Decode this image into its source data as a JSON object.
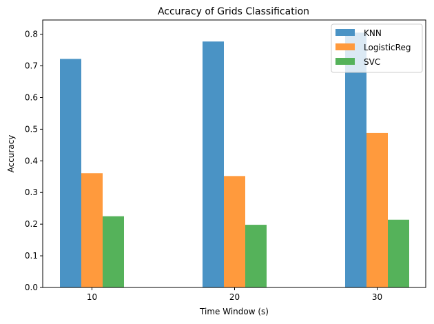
{
  "chart_data": {
    "type": "bar",
    "title": "Accuracy of Grids Classification",
    "xlabel": "Time Window (s)",
    "ylabel": "Accuracy",
    "categories": [
      "10",
      "20",
      "30"
    ],
    "ylim": [
      0,
      0.845
    ],
    "yticks": [
      "0.0",
      "0.1",
      "0.2",
      "0.3",
      "0.4",
      "0.5",
      "0.6",
      "0.7",
      "0.8"
    ],
    "legend_position": "top-right",
    "grid": false,
    "series": [
      {
        "name": "KNN",
        "color": "#4a93c5",
        "values": [
          0.722,
          0.777,
          0.805
        ]
      },
      {
        "name": "LogisticReg",
        "color": "#ff9a3d",
        "values": [
          0.361,
          0.352,
          0.488
        ]
      },
      {
        "name": "SVC",
        "color": "#55b25a",
        "values": [
          0.225,
          0.198,
          0.214
        ]
      }
    ]
  }
}
